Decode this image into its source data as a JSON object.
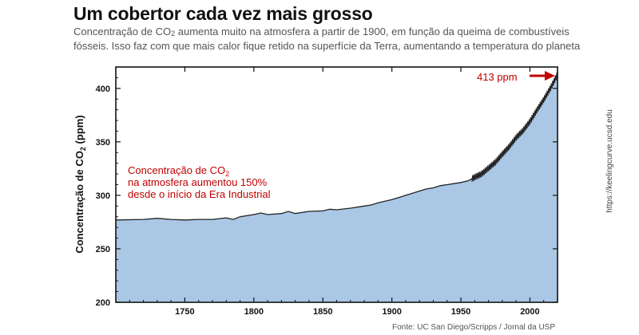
{
  "title": "Um cobertor cada vez mais grosso",
  "subtitle": {
    "line1_before": "Concentração de CO",
    "line1_sub": "2",
    "line1_after": " aumenta muito na atmosfera a partir de 1900, em função da queima de combustíveis",
    "line2": "fósseis. Isso faz com que mais calor fique retido na superfície da Terra, aumentando a temperatura do planeta"
  },
  "colors": {
    "area": "#aac8e6",
    "line": "#222222",
    "accent": "#c00000",
    "title": "#111111",
    "text": "#555555"
  },
  "chart_data": {
    "type": "area",
    "ylabel_main": "Concentração de CO",
    "ylabel_sub": "2",
    "ylabel_unit": " (ppm)",
    "xlim": [
      1700,
      2020
    ],
    "ylim": [
      200,
      420
    ],
    "x_ticks": [
      1750,
      1800,
      1850,
      1900,
      1950,
      2000
    ],
    "y_ticks": [
      200,
      250,
      300,
      350,
      400
    ],
    "series": [
      {
        "x": [
          1700,
          1720,
          1730,
          1740,
          1750,
          1760,
          1770,
          1780,
          1785,
          1790,
          1800,
          1805,
          1810,
          1820,
          1825,
          1830,
          1840,
          1850,
          1855,
          1860,
          1870,
          1880,
          1885,
          1890,
          1900,
          1905,
          1910,
          1915,
          1920,
          1925,
          1930,
          1935,
          1940,
          1945,
          1950,
          1955,
          1958,
          1960,
          1965,
          1970,
          1975,
          1980,
          1985,
          1990,
          1995,
          2000,
          2005,
          2010,
          2015,
          2020
        ],
        "y": [
          277,
          277.5,
          278.5,
          277.5,
          277,
          277.5,
          277.5,
          279,
          277.5,
          280,
          282,
          283.5,
          282,
          283,
          285,
          283,
          285,
          285.5,
          287,
          286.5,
          288,
          290,
          291,
          293,
          296,
          298,
          300,
          302,
          304,
          306,
          307,
          309,
          310,
          311,
          312,
          313.5,
          315.5,
          317,
          320,
          325.5,
          331,
          338.5,
          345.5,
          354,
          360.5,
          369,
          379.5,
          389.5,
          400.5,
          413
        ]
      }
    ],
    "annotations": {
      "current_value": "413 ppm",
      "note_line1_main": "Concentração de CO",
      "note_line1_sub": "2",
      "note_line2": "na atmosfera aumentou 150%",
      "note_line3": "desde o início da Era Industrial"
    }
  },
  "source": "Fonte: UC San Diego/Scripps / Jornal da USP",
  "side_link": "https://keelingcurve.ucsd.edu"
}
